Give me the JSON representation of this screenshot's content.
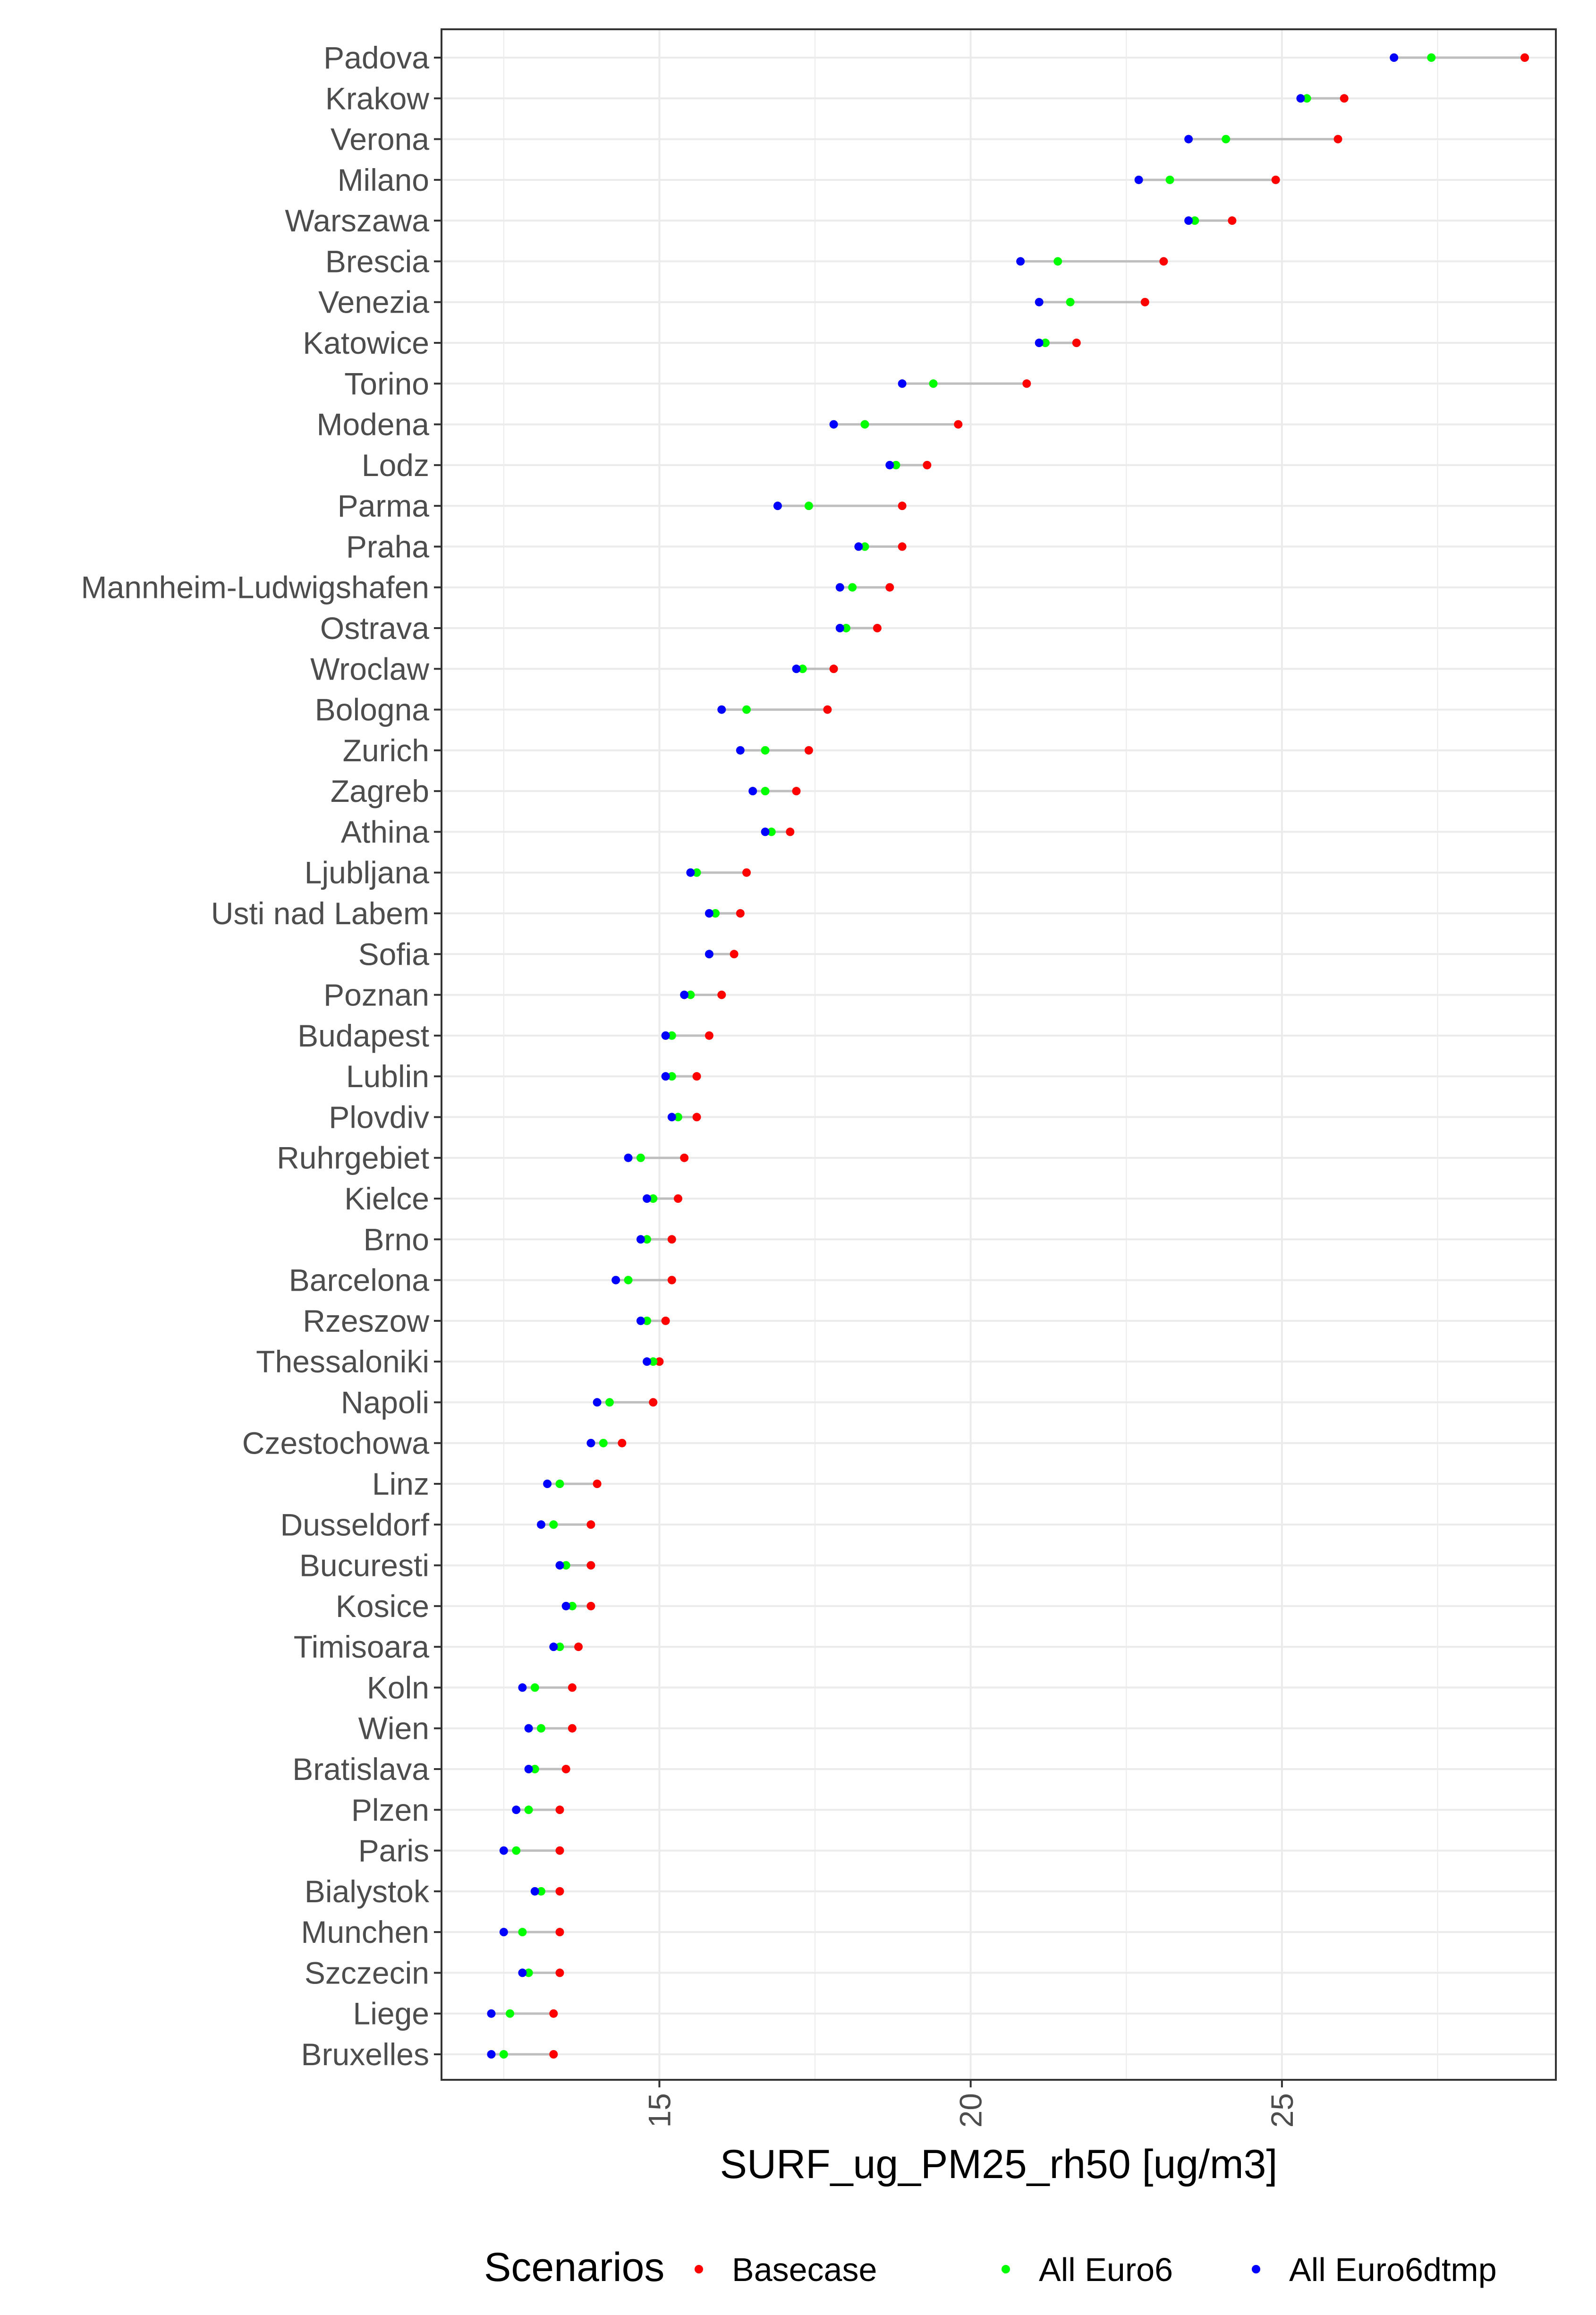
{
  "chart_data": {
    "type": "scatter",
    "subtype": "dumbbell",
    "title": "",
    "xlabel": "SURF_ug_PM25_rh50 [ug/m3]",
    "ylabel": "",
    "xlim": [
      11.5,
      29.4
    ],
    "xticks": [
      15,
      20,
      25
    ],
    "grid": true,
    "legend": {
      "title": "Scenarios",
      "position": "bottom",
      "entries": [
        {
          "name": "Basecase",
          "color": "#ff0000"
        },
        {
          "name": "All Euro6",
          "color": "#00ff00"
        },
        {
          "name": "All Euro6dtmp",
          "color": "#0000ff"
        }
      ]
    },
    "segment_color": "#bebebe",
    "categories": [
      "Padova",
      "Krakow",
      "Verona",
      "Milano",
      "Warszawa",
      "Brescia",
      "Venezia",
      "Katowice",
      "Torino",
      "Modena",
      "Lodz",
      "Parma",
      "Praha",
      "Mannheim-Ludwigshafen",
      "Ostrava",
      "Wroclaw",
      "Bologna",
      "Zurich",
      "Zagreb",
      "Athina",
      "Ljubljana",
      "Usti nad Labem",
      "Sofia",
      "Poznan",
      "Budapest",
      "Lublin",
      "Plovdiv",
      "Ruhrgebiet",
      "Kielce",
      "Brno",
      "Barcelona",
      "Rzeszow",
      "Thessaloniki",
      "Napoli",
      "Czestochowa",
      "Linz",
      "Dusseldorf",
      "Bucuresti",
      "Kosice",
      "Timisoara",
      "Koln",
      "Wien",
      "Bratislava",
      "Plzen",
      "Paris",
      "Bialystok",
      "Munchen",
      "Szczecin",
      "Liege",
      "Bruxelles"
    ],
    "series": [
      {
        "name": "Basecase",
        "color": "#ff0000",
        "values": [
          28.9,
          26.0,
          25.9,
          24.9,
          24.2,
          23.1,
          22.8,
          21.7,
          20.9,
          19.8,
          19.3,
          18.9,
          18.9,
          18.7,
          18.5,
          17.8,
          17.7,
          17.4,
          17.2,
          17.1,
          16.4,
          16.3,
          16.2,
          16.0,
          15.8,
          15.6,
          15.6,
          15.4,
          15.3,
          15.2,
          15.2,
          15.1,
          15.0,
          14.9,
          14.4,
          14.0,
          13.9,
          13.9,
          13.9,
          13.7,
          13.6,
          13.6,
          13.5,
          13.4,
          13.4,
          13.4,
          13.4,
          13.4,
          13.3,
          13.3
        ]
      },
      {
        "name": "All Euro6",
        "color": "#00ff00",
        "values": [
          27.4,
          25.4,
          24.1,
          23.2,
          23.6,
          21.4,
          21.6,
          21.2,
          19.4,
          18.3,
          18.8,
          17.4,
          18.3,
          18.1,
          18.0,
          17.3,
          16.4,
          16.7,
          16.7,
          16.8,
          15.6,
          15.9,
          15.8,
          15.5,
          15.2,
          15.2,
          15.3,
          14.7,
          14.9,
          14.8,
          14.5,
          14.8,
          14.9,
          14.2,
          14.1,
          13.4,
          13.3,
          13.5,
          13.6,
          13.4,
          13.0,
          13.1,
          13.0,
          12.9,
          12.7,
          13.1,
          12.8,
          12.9,
          12.6,
          12.5
        ]
      },
      {
        "name": "All Euro6dtmp",
        "color": "#0000ff",
        "values": [
          26.8,
          25.3,
          23.5,
          22.7,
          23.5,
          20.8,
          21.1,
          21.1,
          18.9,
          17.8,
          18.7,
          16.9,
          18.2,
          17.9,
          17.9,
          17.2,
          16.0,
          16.3,
          16.5,
          16.7,
          15.5,
          15.8,
          15.8,
          15.4,
          15.1,
          15.1,
          15.2,
          14.5,
          14.8,
          14.7,
          14.3,
          14.7,
          14.8,
          14.0,
          13.9,
          13.2,
          13.1,
          13.4,
          13.5,
          13.3,
          12.8,
          12.9,
          12.9,
          12.7,
          12.5,
          13.0,
          12.5,
          12.8,
          12.3,
          12.3
        ]
      }
    ]
  }
}
